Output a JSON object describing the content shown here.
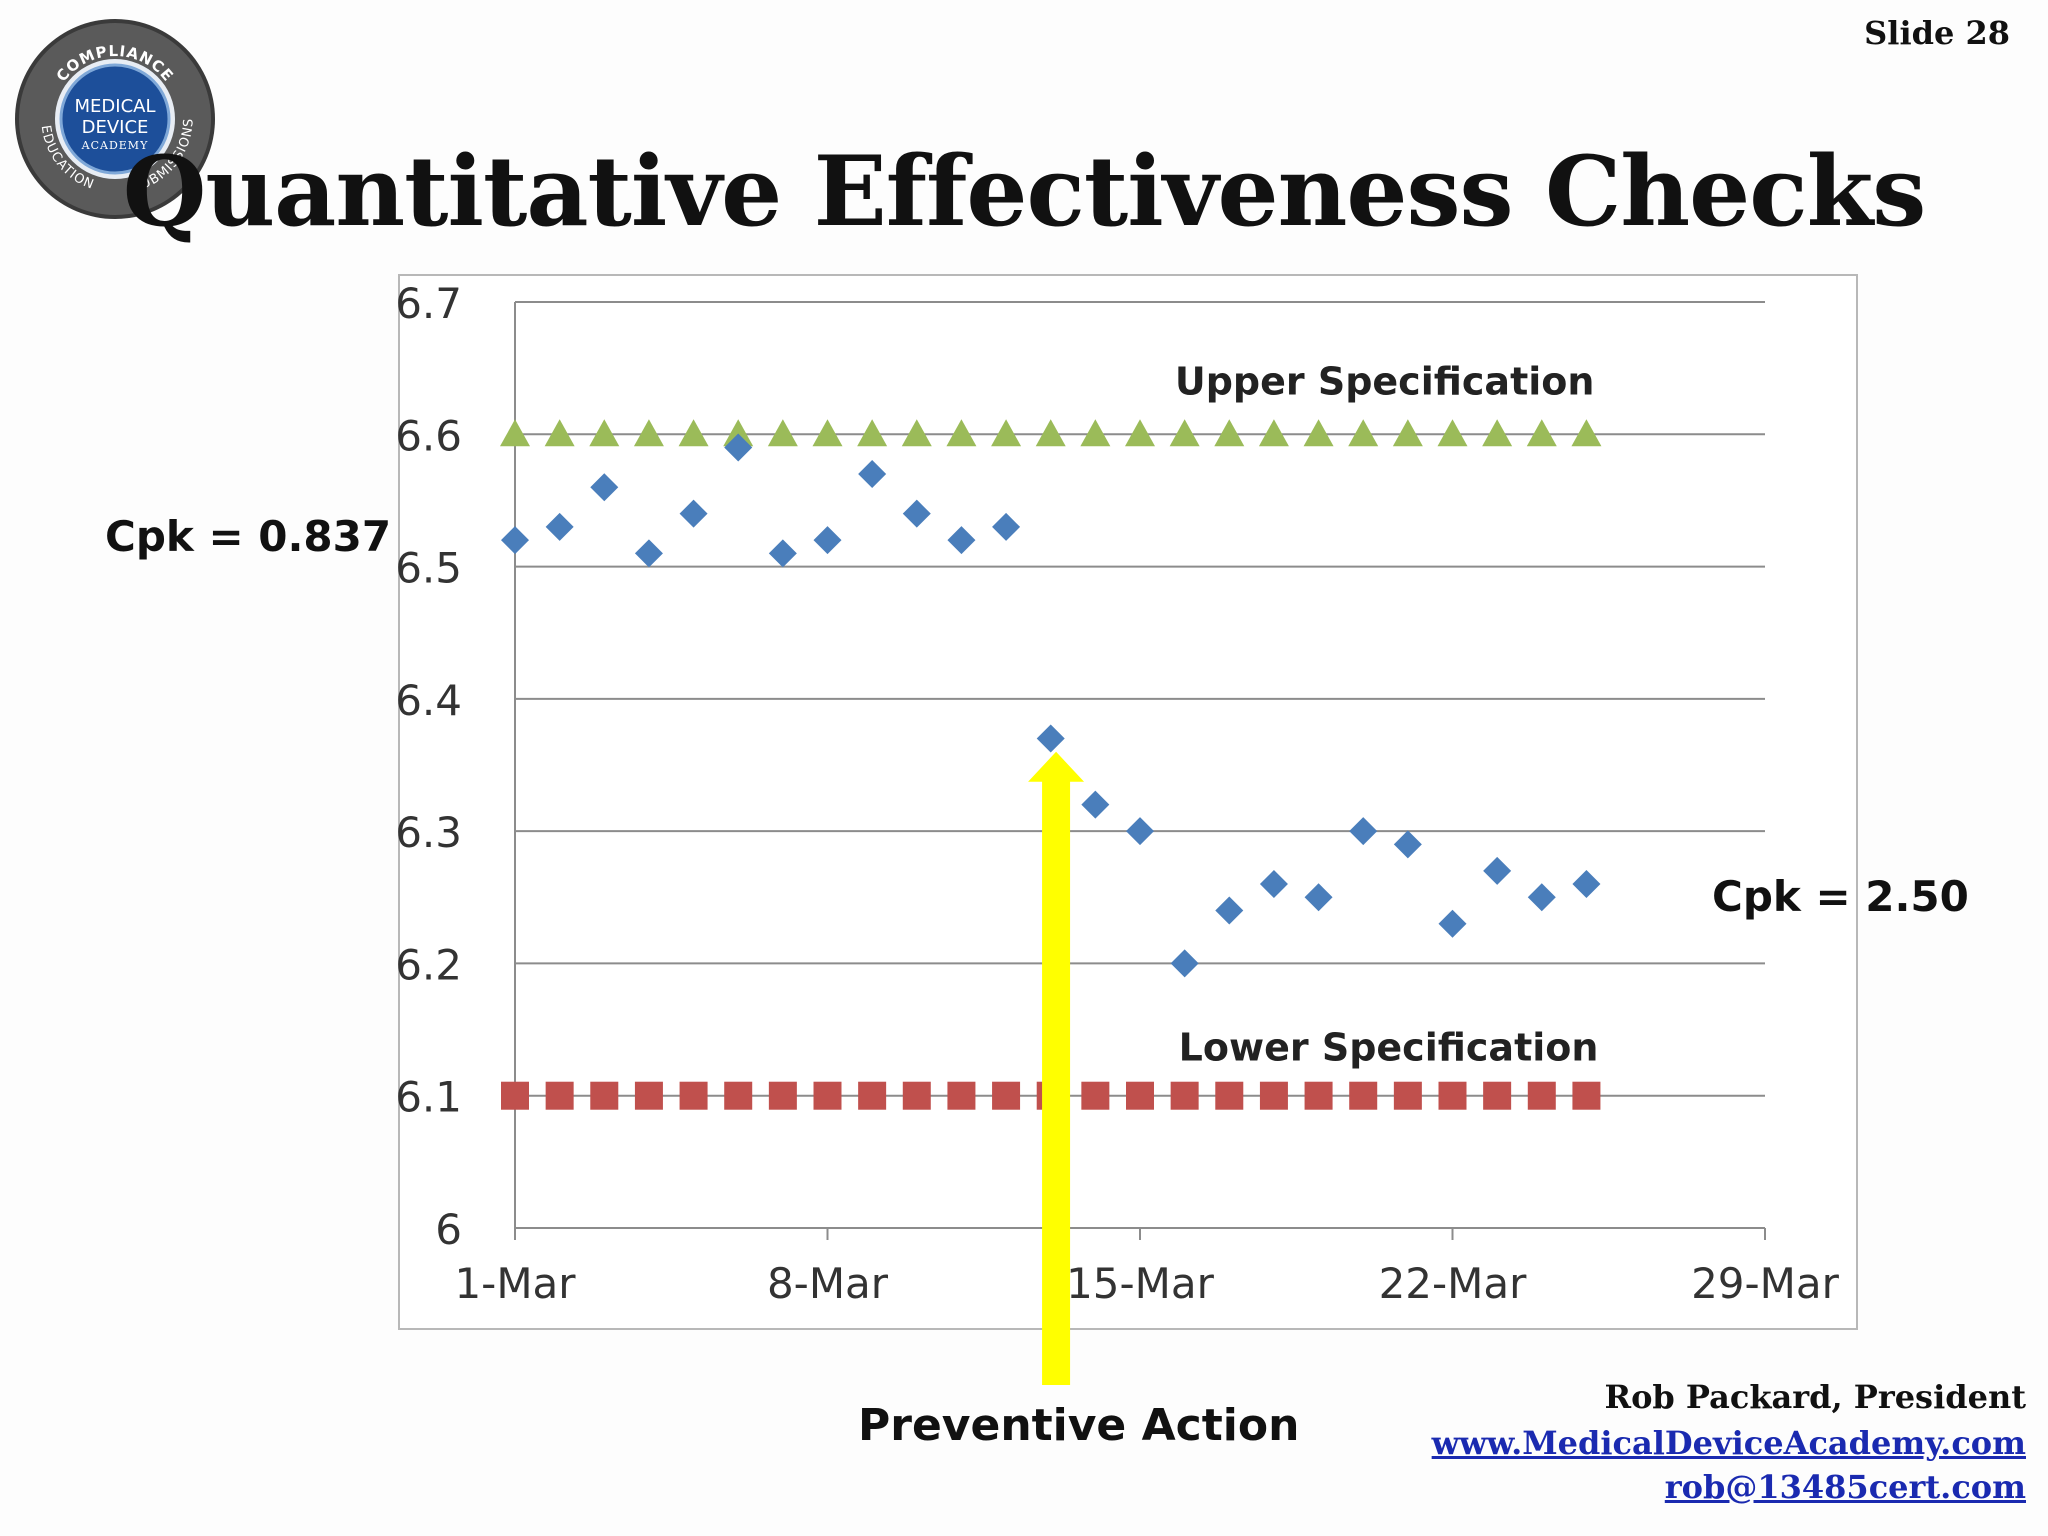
{
  "slide": {
    "number_label": "Slide 28",
    "title": "Quantitative Effectiveness Checks"
  },
  "logo": {
    "top_text": "COMPLIANCE",
    "center_lines": [
      "MEDICAL",
      "DEVICE",
      "ACADEMY"
    ],
    "left_text": "EDUCATION",
    "right_text": "SUBMISSIONS",
    "colors": {
      "ring": "#4a4a4a",
      "center": "#1d4f9a",
      "accent": "#7fa8d8"
    }
  },
  "annotations": {
    "cpk_before": "Cpk = 0.837",
    "cpk_after": "Cpk = 2.50",
    "preventive_action": "Preventive Action",
    "arrow_color": "#ffff00",
    "arrow_date": "12-Mar"
  },
  "footer": {
    "author": "Rob Packard, President",
    "website": "www.MedicalDeviceAcademy.com",
    "email": "rob@13485cert.com"
  },
  "chart_data": {
    "type": "scatter",
    "x_tick_labels": [
      "1-Mar",
      "8-Mar",
      "15-Mar",
      "22-Mar",
      "29-Mar"
    ],
    "y_tick_labels": [
      "6",
      "6.1",
      "6.2",
      "6.3",
      "6.4",
      "6.5",
      "6.6",
      "6.7"
    ],
    "xlim": [
      "1-Mar",
      "29-Mar"
    ],
    "ylim": [
      6,
      6.7
    ],
    "grid": "horizontal",
    "series": [
      {
        "marker": "diamond",
        "color": "#4a7ebb",
        "points": [
          [
            "1-Mar",
            6.52
          ],
          [
            "2-Mar",
            6.53
          ],
          [
            "3-Mar",
            6.56
          ],
          [
            "4-Mar",
            6.51
          ],
          [
            "5-Mar",
            6.54
          ],
          [
            "6-Mar",
            6.59
          ],
          [
            "7-Mar",
            6.51
          ],
          [
            "8-Mar",
            6.52
          ],
          [
            "9-Mar",
            6.57
          ],
          [
            "10-Mar",
            6.54
          ],
          [
            "11-Mar",
            6.52
          ],
          [
            "12-Mar",
            6.53
          ],
          [
            "13-Mar",
            6.37
          ],
          [
            "14-Mar",
            6.32
          ],
          [
            "15-Mar",
            6.3
          ],
          [
            "16-Mar",
            6.2
          ],
          [
            "17-Mar",
            6.24
          ],
          [
            "18-Mar",
            6.26
          ],
          [
            "19-Mar",
            6.25
          ],
          [
            "20-Mar",
            6.3
          ],
          [
            "21-Mar",
            6.29
          ],
          [
            "22-Mar",
            6.23
          ],
          [
            "23-Mar",
            6.27
          ],
          [
            "24-Mar",
            6.25
          ],
          [
            "25-Mar",
            6.26
          ]
        ]
      },
      {
        "name": "Upper Specification",
        "marker": "triangle",
        "color": "#9bbb59",
        "x_range": [
          "1-Mar",
          "25-Mar"
        ],
        "value": 6.6
      },
      {
        "name": "Lower Specification",
        "marker": "square",
        "color": "#c0504d",
        "x_range": [
          "1-Mar",
          "25-Mar"
        ],
        "value": 6.1
      }
    ]
  }
}
